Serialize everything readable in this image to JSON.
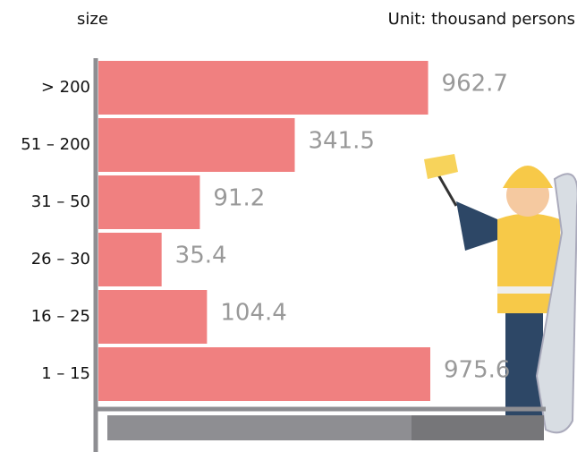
{
  "chart_data": {
    "type": "hbar",
    "title": "size",
    "subtitle": "Unit: thousand persons",
    "categories": [
      "> 200",
      "51 – 200",
      "31 – 50",
      "26 – 30",
      "16 – 25",
      "1 – 15"
    ],
    "values": [
      962.7,
      341.5,
      91.2,
      35.4,
      104.4,
      975.6
    ],
    "color": "#f08080",
    "scale": "sqrt"
  }
}
